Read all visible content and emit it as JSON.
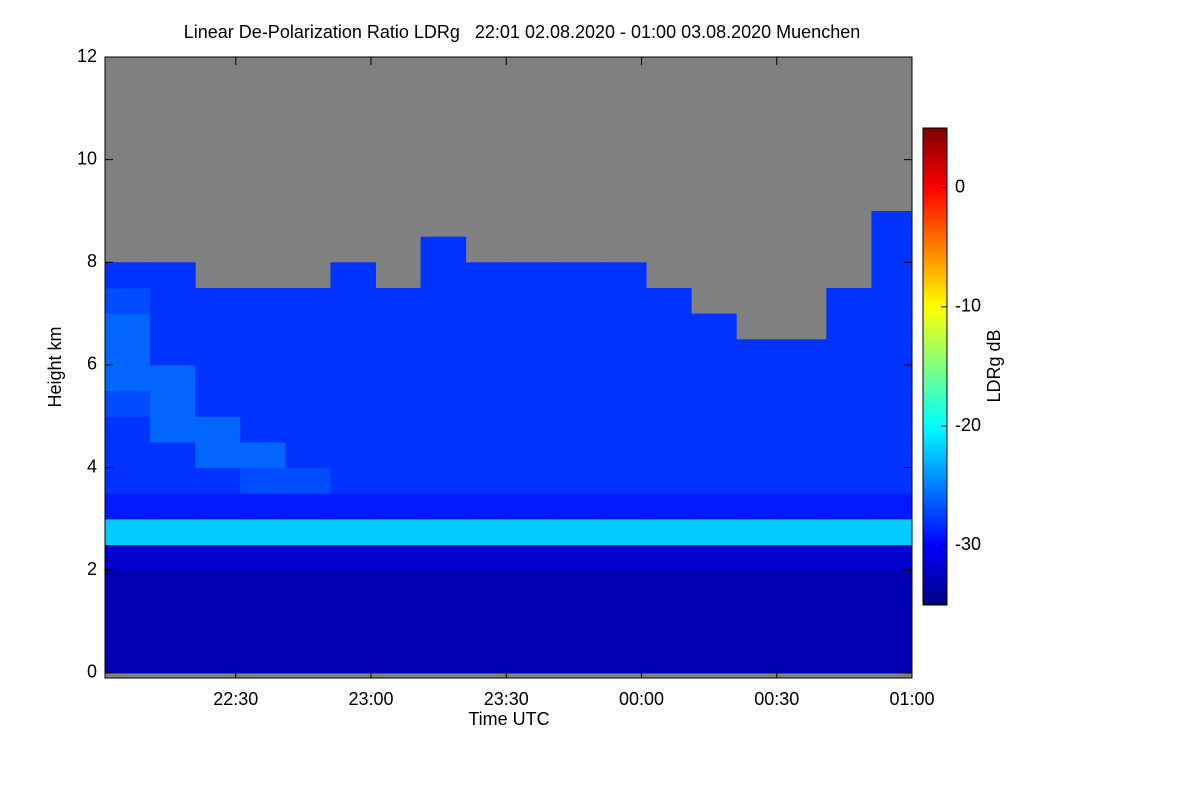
{
  "chart_data": {
    "type": "heatmap",
    "title": "Linear De-Polarization Ratio LDRg   22:01 02.08.2020 - 01:00 03.08.2020 Muenchen",
    "xlabel": "Time UTC",
    "ylabel": "Height km",
    "xlim": [
      1321,
      1500
    ],
    "ylim": [
      -0.1,
      12
    ],
    "xticks": [
      {
        "value": 1350,
        "label": "22:30"
      },
      {
        "value": 1380,
        "label": "23:00"
      },
      {
        "value": 1410,
        "label": "23:30"
      },
      {
        "value": 1440,
        "label": "00:00"
      },
      {
        "value": 1470,
        "label": "00:30"
      },
      {
        "value": 1500,
        "label": "01:00"
      }
    ],
    "yticks": [
      0,
      2,
      4,
      6,
      8,
      10,
      12
    ],
    "x_edges": [
      1321,
      1331,
      1341,
      1351,
      1361,
      1371,
      1381,
      1391,
      1401,
      1411,
      1421,
      1431,
      1441,
      1451,
      1461,
      1471,
      1481,
      1491,
      1501
    ],
    "y_edges": [
      0,
      0.5,
      1,
      1.5,
      2,
      2.5,
      3,
      3.5,
      4,
      4.5,
      5,
      5.5,
      6,
      6.5,
      7,
      7.5,
      8,
      8.5,
      9,
      9.5,
      10,
      10.5,
      11,
      11.5,
      12
    ],
    "z": [
      [
        -33,
        -33,
        -33,
        -33,
        -33,
        -33,
        -33,
        -33,
        -33,
        -33,
        -33,
        -33,
        -33,
        -33,
        -33,
        -33,
        -33,
        -33
      ],
      [
        -33,
        -33,
        -33,
        -33,
        -33,
        -33,
        -33,
        -33,
        -33,
        -33,
        -33,
        -33,
        -33,
        -33,
        -33,
        -33,
        -33,
        -33
      ],
      [
        -33,
        -33,
        -33,
        -33,
        -33,
        -33,
        -33,
        -33,
        -33,
        -33,
        -33,
        -33,
        -33,
        -33,
        -33,
        -33,
        -33,
        -33
      ],
      [
        -33,
        -33,
        -33,
        -33,
        -33,
        -33,
        -33,
        -33,
        -33,
        -33,
        -33,
        -33,
        -33,
        -33,
        -33,
        -33,
        -33,
        -33
      ],
      [
        -32,
        -32,
        -32,
        -32,
        -32,
        -32,
        -32,
        -32,
        -32,
        -32,
        -32,
        -32,
        -32,
        -32,
        -32,
        -32,
        -32,
        -32
      ],
      [
        -22,
        -22,
        -22,
        -22,
        -22,
        -22,
        -22,
        -22,
        -22,
        -22,
        -22,
        -22,
        -22,
        -22,
        -22,
        -22,
        -22,
        -22
      ],
      [
        -29,
        -29,
        -29,
        -29,
        -29,
        -29,
        -29,
        -29,
        -29,
        -29,
        -29,
        -29,
        -29,
        -29,
        -29,
        -29,
        -29,
        -29
      ],
      [
        -28,
        -28,
        -28,
        -27,
        -27,
        -28,
        -28,
        -28,
        -28,
        -28,
        -28,
        -28,
        -28,
        -28,
        -28,
        -28,
        -28,
        -28
      ],
      [
        -28,
        -28,
        -26,
        -26,
        -28,
        -28,
        -28,
        -28,
        -28,
        -28,
        -28,
        -28,
        -28,
        -28,
        -28,
        -28,
        -28,
        -28
      ],
      [
        -28,
        -26,
        -26,
        -28,
        -28,
        -28,
        -28,
        -28,
        -28,
        -28,
        -28,
        -28,
        -28,
        -28,
        -28,
        -28,
        -28,
        -28
      ],
      [
        -27,
        -26,
        -28,
        -28,
        -28,
        -28,
        -28,
        -28,
        -28,
        -28,
        -28,
        -28,
        -28,
        -28,
        -28,
        -28,
        -28,
        -28
      ],
      [
        -26,
        -26,
        -28,
        -28,
        -28,
        -28,
        -28,
        -28,
        -28,
        -28,
        -28,
        -28,
        -28,
        -28,
        -28,
        -28,
        -28,
        -28
      ],
      [
        -26,
        -28,
        -28,
        -28,
        -28,
        -28,
        -28,
        -28,
        -28,
        -28,
        -28,
        -28,
        -28,
        -28,
        -28,
        -28,
        -28,
        -28
      ],
      [
        -26,
        -28,
        -28,
        -28,
        -28,
        -28,
        -28,
        -28,
        -28,
        -28,
        -28,
        -28,
        -28,
        -28,
        null,
        null,
        -28,
        -28
      ],
      [
        -27,
        -28,
        -28,
        -28,
        -28,
        -28,
        -28,
        -28,
        -28,
        -28,
        -28,
        -28,
        -28,
        null,
        null,
        null,
        -28,
        -28
      ],
      [
        -28,
        -28,
        null,
        null,
        null,
        -28,
        null,
        -28,
        -28,
        -28,
        -28,
        -28,
        null,
        null,
        null,
        null,
        null,
        -28
      ],
      [
        null,
        null,
        null,
        null,
        null,
        null,
        null,
        -28,
        null,
        null,
        null,
        null,
        null,
        null,
        null,
        null,
        null,
        -28
      ],
      [
        null,
        null,
        null,
        null,
        null,
        null,
        null,
        null,
        null,
        null,
        null,
        null,
        null,
        null,
        null,
        null,
        null,
        -28
      ],
      [
        null,
        null,
        null,
        null,
        null,
        null,
        null,
        null,
        null,
        null,
        null,
        null,
        null,
        null,
        null,
        null,
        null,
        null
      ],
      [
        null,
        null,
        null,
        null,
        null,
        null,
        null,
        null,
        null,
        null,
        null,
        null,
        null,
        null,
        null,
        null,
        null,
        null
      ],
      [
        null,
        null,
        null,
        null,
        null,
        null,
        null,
        null,
        null,
        null,
        null,
        null,
        null,
        null,
        null,
        null,
        null,
        null
      ],
      [
        null,
        null,
        null,
        null,
        null,
        null,
        null,
        null,
        null,
        null,
        null,
        null,
        null,
        null,
        null,
        null,
        null,
        null
      ],
      [
        null,
        null,
        null,
        null,
        null,
        null,
        null,
        null,
        null,
        null,
        null,
        null,
        null,
        null,
        null,
        null,
        null,
        null
      ],
      [
        null,
        null,
        null,
        null,
        null,
        null,
        null,
        null,
        null,
        null,
        null,
        null,
        null,
        null,
        null,
        null,
        null,
        null
      ]
    ],
    "missing_color": "#808080",
    "colormap": [
      "#00007f",
      "#0000ff",
      "#007fff",
      "#00ffff",
      "#7fff7f",
      "#ffff00",
      "#ff7f00",
      "#ff0000",
      "#7f0000"
    ],
    "colorbar": {
      "label": "LDRg dB",
      "lim": [
        -35,
        5
      ],
      "ticks": [
        0,
        -10,
        -20,
        -30
      ]
    }
  }
}
